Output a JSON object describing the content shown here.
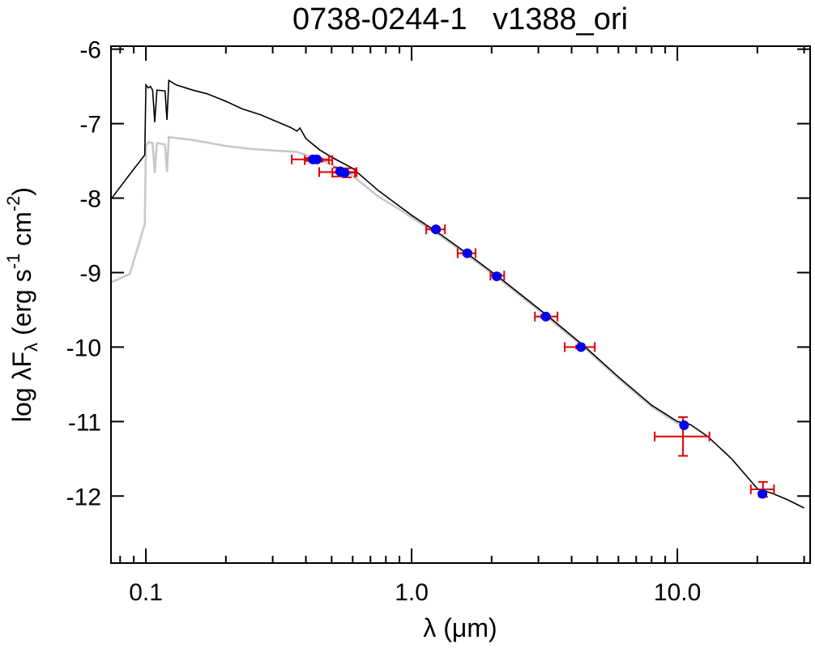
{
  "chart_data": {
    "type": "line",
    "title": "0738-0244-1   v1388_ori",
    "xlabel": "λ (μm)",
    "ylabel_parts": [
      "log λF",
      "λ",
      " (erg s",
      "-1",
      " cm",
      "-2",
      ")"
    ],
    "xscale": "log",
    "xlim": [
      0.0739,
      31.6
    ],
    "ylim": [
      -12.9,
      -5.96
    ],
    "xticks": [
      0.1,
      {
        "value": 1,
        "label": "1.0"
      },
      {
        "value": 10,
        "label": "10.0"
      }
    ],
    "xminor_ticks": [
      0.08,
      0.09,
      0.2,
      0.3,
      0.4,
      0.5,
      0.6,
      0.7,
      0.8,
      0.9,
      2,
      3,
      4,
      5,
      6,
      7,
      8,
      9,
      20,
      30
    ],
    "yticks": [
      -6,
      -7,
      -8,
      -9,
      -10,
      -11,
      -12
    ],
    "series": [
      {
        "color": "#c8c8c8",
        "x": [
          0.074,
          0.087,
          0.099,
          0.1,
          0.102,
          0.106,
          0.108,
          0.11,
          0.118,
          0.12,
          0.122,
          0.15,
          0.2,
          0.25,
          0.3,
          0.37,
          0.4,
          0.45,
          0.5,
          0.6,
          0.75,
          0.9,
          1.0,
          1.3,
          1.7,
          2.2,
          3.3,
          4.5,
          6.0,
          8.0,
          10.0,
          10.5
        ],
        "values": [
          -9.13,
          -9.02,
          -8.35,
          -7.3,
          -7.25,
          -7.26,
          -7.66,
          -7.26,
          -7.28,
          -7.65,
          -7.18,
          -7.22,
          -7.3,
          -7.34,
          -7.36,
          -7.38,
          -7.42,
          -7.48,
          -7.55,
          -7.7,
          -7.98,
          -8.15,
          -8.26,
          -8.52,
          -8.82,
          -9.12,
          -9.62,
          -10.02,
          -10.42,
          -10.8,
          -11.02,
          -11.05
        ]
      },
      {
        "color": "#000000",
        "x": [
          0.074,
          0.087,
          0.099,
          0.1,
          0.102,
          0.104,
          0.106,
          0.108,
          0.11,
          0.118,
          0.12,
          0.122,
          0.13,
          0.15,
          0.17,
          0.2,
          0.23,
          0.27,
          0.3,
          0.35,
          0.37,
          0.38,
          0.4,
          0.45,
          0.5,
          0.6,
          0.75,
          1.0,
          1.3,
          1.7,
          2.2,
          3.3,
          4.5,
          6.0,
          8.0,
          10.0,
          11.2,
          13,
          16,
          20,
          23,
          26,
          30
        ],
        "values": [
          -8.01,
          -7.68,
          -7.42,
          -6.48,
          -6.52,
          -6.5,
          -6.55,
          -6.98,
          -6.55,
          -6.56,
          -6.95,
          -6.42,
          -6.48,
          -6.55,
          -6.6,
          -6.7,
          -6.8,
          -6.88,
          -6.95,
          -7.05,
          -7.1,
          -7.06,
          -7.2,
          -7.35,
          -7.45,
          -7.6,
          -7.9,
          -8.23,
          -8.5,
          -8.8,
          -9.1,
          -9.6,
          -10.0,
          -10.4,
          -10.78,
          -11.0,
          -11.04,
          -11.2,
          -11.5,
          -11.9,
          -11.97,
          -12.05,
          -12.16
        ]
      }
    ],
    "observed": {
      "color": "#e00000",
      "x": [
        0.413,
        0.446,
        0.528,
        0.57,
        1.234,
        1.62,
        2.09,
        3.18,
        4.31,
        10.5,
        21.0
      ],
      "xlo": [
        0.354,
        0.396,
        0.449,
        0.503,
        1.135,
        1.49,
        1.98,
        2.91,
        3.77,
        8.22,
        18.9
      ],
      "xhi": [
        0.489,
        0.503,
        0.621,
        0.612,
        1.334,
        1.74,
        2.23,
        3.54,
        4.89,
        13.2,
        23.1
      ],
      "values": [
        -7.48,
        -7.49,
        -7.65,
        -7.66,
        -8.42,
        -8.74,
        -9.04,
        -9.59,
        -10.0,
        -11.2,
        -11.91
      ],
      "yerr": [
        0.02,
        0.02,
        0.06,
        0.06,
        0.02,
        0.02,
        0.02,
        0.02,
        0.02,
        0.26,
        0.1
      ]
    },
    "model_points": {
      "color": "#0000ee",
      "x": [
        0.425,
        0.44,
        0.538,
        0.56,
        1.234,
        1.62,
        2.09,
        3.2,
        4.34,
        10.6,
        20.9
      ],
      "values": [
        -7.48,
        -7.48,
        -7.64,
        -7.66,
        -8.42,
        -8.74,
        -9.05,
        -9.59,
        -10.0,
        -11.05,
        -11.97
      ]
    }
  }
}
